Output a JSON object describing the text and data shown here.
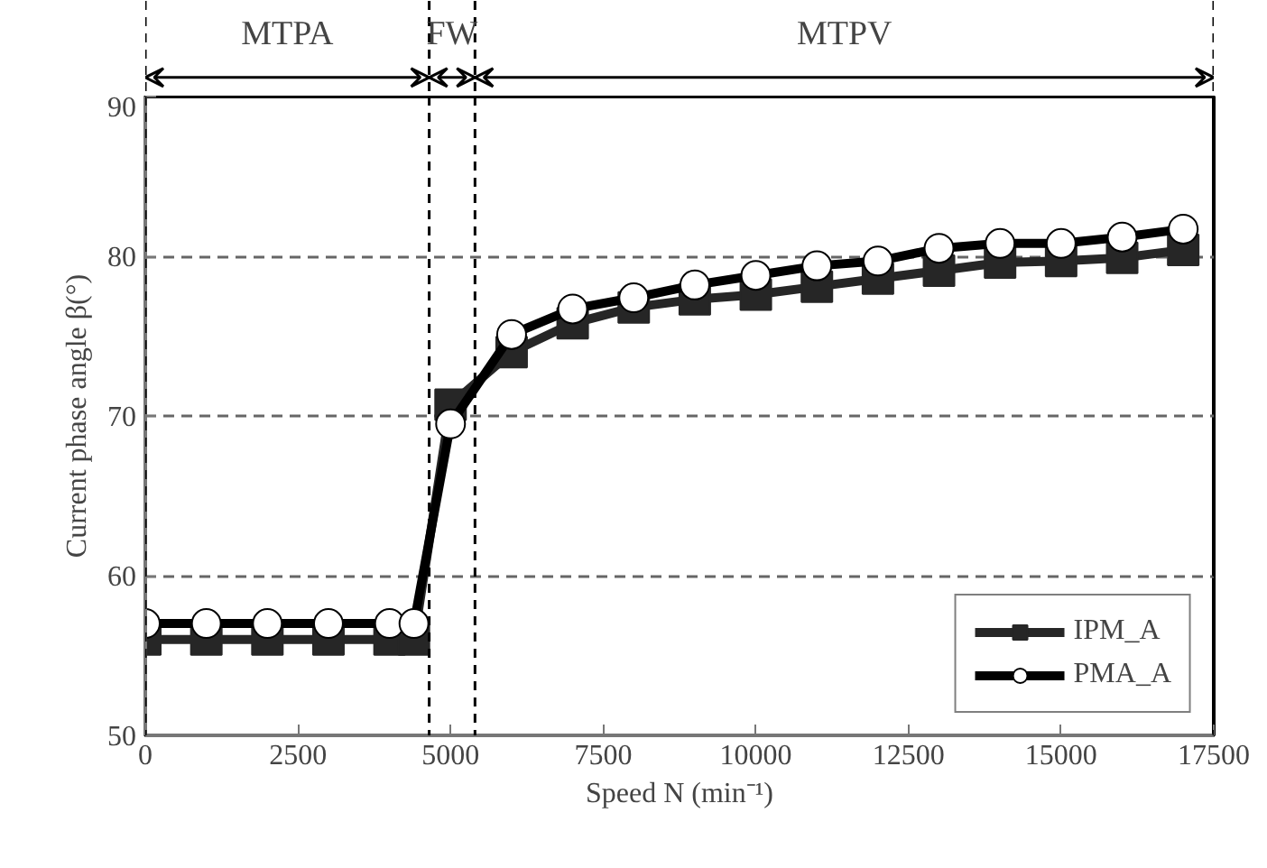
{
  "chart_data": {
    "type": "line",
    "xlabel": "Speed N (min⁻¹)",
    "ylabel": "Current phase angle β(°)",
    "xlim": [
      0,
      17500
    ],
    "xticks": [
      0,
      2500,
      5000,
      7500,
      10000,
      12500,
      15000,
      17500
    ],
    "ylim": [
      50,
      90
    ],
    "yticks": [
      50,
      60,
      70,
      80,
      90
    ],
    "grid": "y",
    "legend": "bottom right",
    "series": [
      {
        "name": "IPM_A",
        "color": "#262626",
        "marker": "square",
        "x": [
          0,
          1000,
          2000,
          3000,
          4000,
          4400,
          5000,
          6000,
          7000,
          8000,
          9000,
          10000,
          11000,
          12000,
          13000,
          14000,
          15000,
          16000,
          17000
        ],
        "values": [
          56,
          56,
          56,
          56,
          56,
          56,
          70.7,
          74.0,
          75.8,
          76.8,
          77.3,
          77.6,
          78.1,
          78.6,
          79.1,
          79.6,
          79.7,
          79.9,
          80.4
        ]
      },
      {
        "name": "PMA_A",
        "color": "#000000",
        "marker": "circle",
        "x": [
          0,
          1000,
          2000,
          3000,
          4000,
          4400,
          5000,
          6000,
          7000,
          8000,
          9000,
          10000,
          11000,
          12000,
          13000,
          14000,
          15000,
          16000,
          17000
        ],
        "values": [
          57,
          57,
          57,
          57,
          57,
          57,
          69.5,
          75.1,
          76.7,
          77.4,
          78.2,
          78.8,
          79.4,
          79.7,
          80.5,
          80.8,
          80.8,
          81.2,
          81.7
        ]
      }
    ],
    "ref_lines": [
      {
        "axis": "x",
        "value": 0,
        "label": null
      },
      {
        "axis": "x",
        "value": 4650,
        "label": null
      },
      {
        "axis": "x",
        "value": 5400,
        "label": null
      },
      {
        "axis": "x",
        "value": 17500,
        "label": null
      }
    ],
    "annotations": [
      "MTPA",
      "FW",
      "MTPV"
    ]
  }
}
